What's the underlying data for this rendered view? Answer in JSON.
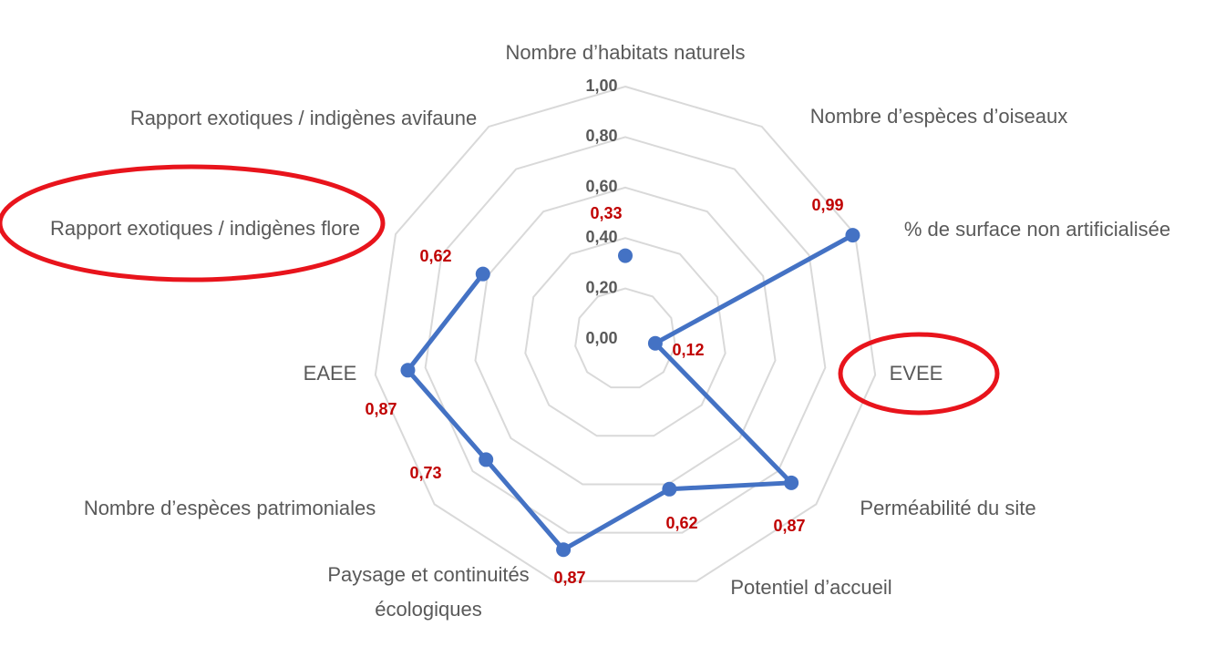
{
  "chart_data": {
    "type": "radar",
    "categories": [
      "Nombre d’habitats naturels",
      "Nombre d’espèces d’oiseaux",
      "% de surface non artificialisée",
      "EVEE",
      "Perméabilité du site",
      "Potentiel d’accueil",
      "Paysage et continuités écologiques",
      "Nombre d’espèces patrimoniales",
      "EAEE",
      "Rapport exotiques / indigènes flore",
      "Rapport exotiques / indigènes avifaune"
    ],
    "series": [
      {
        "color": "#4472c4",
        "values": [
          0.33,
          null,
          0.99,
          0.12,
          0.87,
          0.62,
          0.87,
          0.73,
          0.87,
          0.62,
          null
        ],
        "value_labels": [
          "0,33",
          null,
          "0,99",
          "0,12",
          "0,87",
          "0,62",
          "0,87",
          "0,73",
          "0,87",
          "0,62",
          null
        ]
      }
    ],
    "ylim": [
      0,
      1
    ],
    "yticks": [
      {
        "value": 0,
        "label": "0,00"
      },
      {
        "value": 0.2,
        "label": "0,20"
      },
      {
        "value": 0.4,
        "label": "0,40"
      },
      {
        "value": 0.6,
        "label": "0,60"
      },
      {
        "value": 0.8,
        "label": "0,80"
      },
      {
        "value": 1,
        "label": "1,00"
      }
    ],
    "grid": true
  }
}
